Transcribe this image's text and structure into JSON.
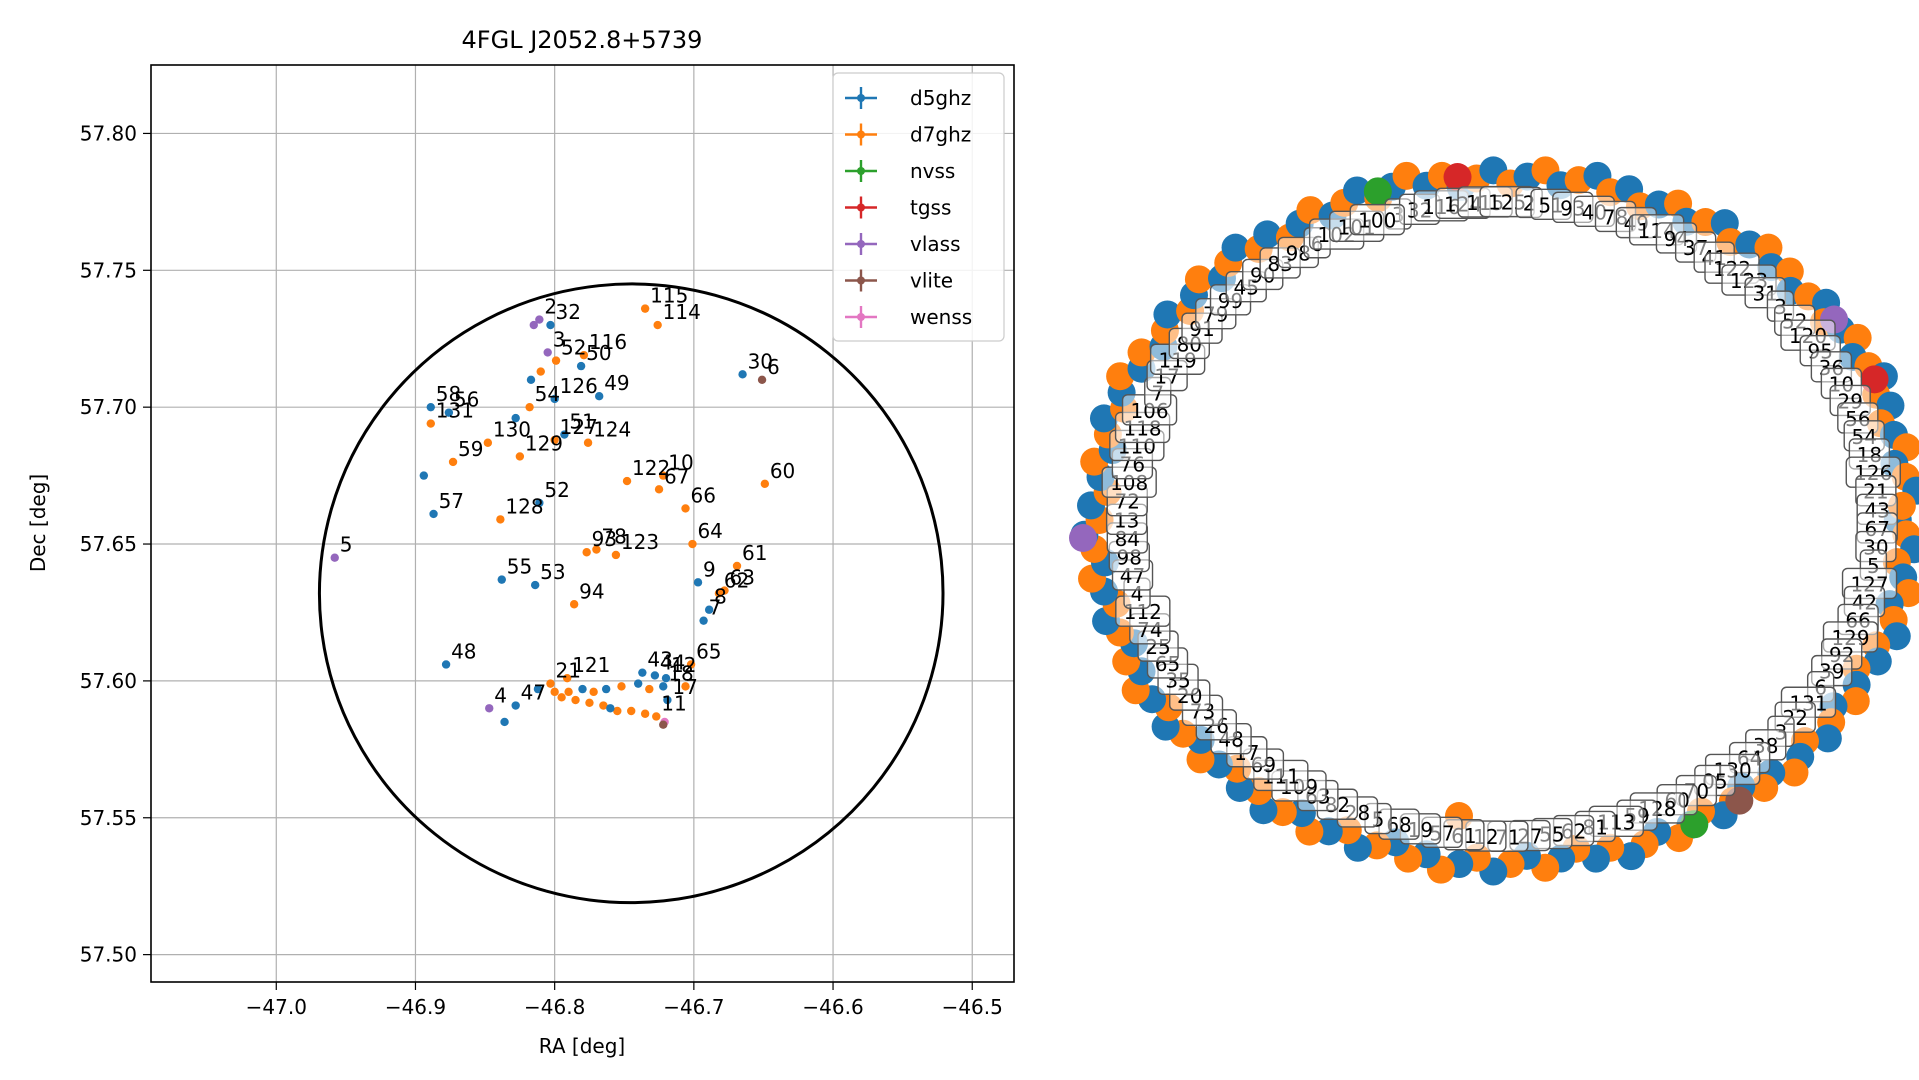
{
  "chart_data": [
    {
      "type": "scatter",
      "title": "4FGL J2052.8+5739",
      "xlabel": "RA [deg]",
      "ylabel": "Dec [deg]",
      "xlim": [
        -47.09,
        -46.47
      ],
      "ylim": [
        57.49,
        57.825
      ],
      "xticks": [
        -47.0,
        -46.9,
        -46.8,
        -46.7,
        -46.6,
        -46.5
      ],
      "xtick_labels": [
        "−47.0",
        "−46.9",
        "−46.8",
        "−46.7",
        "−46.6",
        "−46.5"
      ],
      "yticks": [
        57.5,
        57.55,
        57.6,
        57.65,
        57.7,
        57.75,
        57.8
      ],
      "ytick_labels": [
        "57.50",
        "57.55",
        "57.60",
        "57.65",
        "57.70",
        "57.75",
        "57.80"
      ],
      "grid": true,
      "legend_position": "upper right",
      "legend": [
        {
          "name": "d5ghz",
          "color": "#1f77b4"
        },
        {
          "name": "d7ghz",
          "color": "#ff7f0e"
        },
        {
          "name": "nvss",
          "color": "#2ca02c"
        },
        {
          "name": "tgss",
          "color": "#d62728"
        },
        {
          "name": "vlass",
          "color": "#9467bd"
        },
        {
          "name": "vlite",
          "color": "#8c564b"
        },
        {
          "name": "wenss",
          "color": "#e377c2"
        }
      ],
      "ellipse": {
        "center": [
          -46.745,
          57.632
        ],
        "semi_axes": [
          0.224,
          0.113
        ],
        "color": "#000000"
      },
      "points": [
        {
          "x": -46.803,
          "y": 57.73,
          "s": "d5ghz",
          "label": "32"
        },
        {
          "x": -46.735,
          "y": 57.736,
          "s": "d7ghz",
          "label": "115"
        },
        {
          "x": -46.726,
          "y": 57.73,
          "s": "d7ghz",
          "label": "114"
        },
        {
          "x": -46.811,
          "y": 57.732,
          "s": "vlass",
          "label": "2"
        },
        {
          "x": -46.815,
          "y": 57.73,
          "s": "vlass",
          "label": ""
        },
        {
          "x": -46.665,
          "y": 57.712,
          "s": "d5ghz",
          "label": "30"
        },
        {
          "x": -46.651,
          "y": 57.71,
          "s": "vlite",
          "label": "6"
        },
        {
          "x": -46.805,
          "y": 57.72,
          "s": "vlass",
          "label": "3"
        },
        {
          "x": -46.779,
          "y": 57.719,
          "s": "d7ghz",
          "label": "116"
        },
        {
          "x": -46.781,
          "y": 57.715,
          "s": "d5ghz",
          "label": "50"
        },
        {
          "x": -46.799,
          "y": 57.717,
          "s": "d7ghz",
          "label": "52"
        },
        {
          "x": -46.81,
          "y": 57.713,
          "s": "d7ghz",
          "label": ""
        },
        {
          "x": -46.817,
          "y": 57.71,
          "s": "d5ghz",
          "label": ""
        },
        {
          "x": -46.768,
          "y": 57.704,
          "s": "d5ghz",
          "label": "49"
        },
        {
          "x": -46.889,
          "y": 57.7,
          "s": "d5ghz",
          "label": "58"
        },
        {
          "x": -46.876,
          "y": 57.698,
          "s": "d5ghz",
          "label": "56"
        },
        {
          "x": -46.889,
          "y": 57.694,
          "s": "d7ghz",
          "label": "131"
        },
        {
          "x": -46.818,
          "y": 57.7,
          "s": "d7ghz",
          "label": "54"
        },
        {
          "x": -46.8,
          "y": 57.703,
          "s": "d5ghz",
          "label": "126"
        },
        {
          "x": -46.828,
          "y": 57.696,
          "s": "d5ghz",
          "label": ""
        },
        {
          "x": -46.848,
          "y": 57.687,
          "s": "d7ghz",
          "label": "130"
        },
        {
          "x": -46.825,
          "y": 57.682,
          "s": "d7ghz",
          "label": "129"
        },
        {
          "x": -46.8,
          "y": 57.688,
          "s": "d7ghz",
          "label": "127"
        },
        {
          "x": -46.793,
          "y": 57.69,
          "s": "d5ghz",
          "label": "51"
        },
        {
          "x": -46.776,
          "y": 57.687,
          "s": "d7ghz",
          "label": "124"
        },
        {
          "x": -46.894,
          "y": 57.675,
          "s": "d5ghz",
          "label": ""
        },
        {
          "x": -46.873,
          "y": 57.68,
          "s": "d7ghz",
          "label": "59"
        },
        {
          "x": -46.748,
          "y": 57.673,
          "s": "d7ghz",
          "label": "122"
        },
        {
          "x": -46.722,
          "y": 57.675,
          "s": "d7ghz",
          "label": "10"
        },
        {
          "x": -46.725,
          "y": 57.67,
          "s": "d7ghz",
          "label": "67"
        },
        {
          "x": -46.649,
          "y": 57.672,
          "s": "d7ghz",
          "label": "60"
        },
        {
          "x": -46.887,
          "y": 57.661,
          "s": "d5ghz",
          "label": "57"
        },
        {
          "x": -46.811,
          "y": 57.665,
          "s": "d5ghz",
          "label": "52"
        },
        {
          "x": -46.839,
          "y": 57.659,
          "s": "d7ghz",
          "label": "128"
        },
        {
          "x": -46.706,
          "y": 57.663,
          "s": "d7ghz",
          "label": "66"
        },
        {
          "x": -46.701,
          "y": 57.65,
          "s": "d7ghz",
          "label": "64"
        },
        {
          "x": -46.777,
          "y": 57.647,
          "s": "d7ghz",
          "label": "93"
        },
        {
          "x": -46.77,
          "y": 57.648,
          "s": "d7ghz",
          "label": "78"
        },
        {
          "x": -46.756,
          "y": 57.646,
          "s": "d7ghz",
          "label": "123"
        },
        {
          "x": -46.669,
          "y": 57.642,
          "s": "d7ghz",
          "label": "61"
        },
        {
          "x": -46.958,
          "y": 57.645,
          "s": "vlass",
          "label": "5"
        },
        {
          "x": -46.838,
          "y": 57.637,
          "s": "d5ghz",
          "label": "55"
        },
        {
          "x": -46.814,
          "y": 57.635,
          "s": "d5ghz",
          "label": "53"
        },
        {
          "x": -46.697,
          "y": 57.636,
          "s": "d5ghz",
          "label": "9"
        },
        {
          "x": -46.682,
          "y": 57.632,
          "s": "d7ghz",
          "label": "62"
        },
        {
          "x": -46.678,
          "y": 57.633,
          "s": "d7ghz",
          "label": "63"
        },
        {
          "x": -46.786,
          "y": 57.628,
          "s": "d7ghz",
          "label": "94"
        },
        {
          "x": -46.693,
          "y": 57.622,
          "s": "d5ghz",
          "label": "7"
        },
        {
          "x": -46.689,
          "y": 57.626,
          "s": "d5ghz",
          "label": "8"
        },
        {
          "x": -46.878,
          "y": 57.606,
          "s": "d5ghz",
          "label": "48"
        },
        {
          "x": -46.702,
          "y": 57.606,
          "s": "d7ghz",
          "label": "65"
        },
        {
          "x": -46.737,
          "y": 57.603,
          "s": "d5ghz",
          "label": "43"
        },
        {
          "x": -46.728,
          "y": 57.602,
          "s": "d5ghz",
          "label": "44"
        },
        {
          "x": -46.72,
          "y": 57.601,
          "s": "d5ghz",
          "label": "12"
        },
        {
          "x": -46.791,
          "y": 57.601,
          "s": "d7ghz",
          "label": "121"
        },
        {
          "x": -46.803,
          "y": 57.599,
          "s": "d7ghz",
          "label": "21"
        },
        {
          "x": -46.812,
          "y": 57.597,
          "s": "d5ghz",
          "label": ""
        },
        {
          "x": -46.8,
          "y": 57.596,
          "s": "d7ghz",
          "label": ""
        },
        {
          "x": -46.79,
          "y": 57.596,
          "s": "d7ghz",
          "label": ""
        },
        {
          "x": -46.78,
          "y": 57.597,
          "s": "d5ghz",
          "label": ""
        },
        {
          "x": -46.772,
          "y": 57.596,
          "s": "d7ghz",
          "label": ""
        },
        {
          "x": -46.763,
          "y": 57.597,
          "s": "d5ghz",
          "label": ""
        },
        {
          "x": -46.752,
          "y": 57.598,
          "s": "d7ghz",
          "label": ""
        },
        {
          "x": -46.74,
          "y": 57.599,
          "s": "d5ghz",
          "label": ""
        },
        {
          "x": -46.732,
          "y": 57.597,
          "s": "d7ghz",
          "label": ""
        },
        {
          "x": -46.722,
          "y": 57.598,
          "s": "d5ghz",
          "label": "18"
        },
        {
          "x": -46.706,
          "y": 57.598,
          "s": "d7ghz",
          "label": ""
        },
        {
          "x": -46.795,
          "y": 57.594,
          "s": "d7ghz",
          "label": ""
        },
        {
          "x": -46.785,
          "y": 57.593,
          "s": "d7ghz",
          "label": ""
        },
        {
          "x": -46.775,
          "y": 57.592,
          "s": "d7ghz",
          "label": ""
        },
        {
          "x": -46.765,
          "y": 57.591,
          "s": "d7ghz",
          "label": ""
        },
        {
          "x": -46.755,
          "y": 57.589,
          "s": "d7ghz",
          "label": ""
        },
        {
          "x": -46.745,
          "y": 57.589,
          "s": "d7ghz",
          "label": ""
        },
        {
          "x": -46.735,
          "y": 57.588,
          "s": "d7ghz",
          "label": ""
        },
        {
          "x": -46.727,
          "y": 57.587,
          "s": "d7ghz",
          "label": "11"
        },
        {
          "x": -46.719,
          "y": 57.593,
          "s": "d5ghz",
          "label": "17"
        },
        {
          "x": -46.76,
          "y": 57.59,
          "s": "d5ghz",
          "label": ""
        },
        {
          "x": -46.828,
          "y": 57.591,
          "s": "d5ghz",
          "label": "47"
        },
        {
          "x": -46.847,
          "y": 57.59,
          "s": "vlass",
          "label": "4"
        },
        {
          "x": -46.836,
          "y": 57.585,
          "s": "d5ghz",
          "label": ""
        },
        {
          "x": -46.721,
          "y": 57.585,
          "s": "wenss",
          "label": ""
        },
        {
          "x": -46.722,
          "y": 57.584,
          "s": "vlite",
          "label": ""
        }
      ]
    },
    {
      "type": "scatter",
      "title": "",
      "axes": false,
      "ring_labels": [
        "3",
        "32",
        "116",
        "124",
        "115",
        "125",
        "2",
        "51",
        "93",
        "40",
        "78",
        "49",
        "114",
        "94",
        "37",
        "41",
        "122",
        "123",
        "31",
        "3",
        "52",
        "120",
        "95",
        "36",
        "10",
        "29",
        "56",
        "54",
        "18",
        "126",
        "21",
        "43",
        "67",
        "30",
        "5",
        "127",
        "42",
        "66",
        "129",
        "92",
        "39",
        "6",
        "131",
        "22",
        "3",
        "38",
        "64",
        "130",
        "05",
        "70",
        "60",
        "128",
        "59",
        "113",
        "81",
        "62",
        "55",
        "27",
        "71",
        "12",
        "61",
        "57",
        "19",
        "68",
        "5",
        "28",
        "82",
        "63",
        "109",
        "111",
        "69",
        "17",
        "48",
        "26",
        "73",
        "20",
        "35",
        "65",
        "25",
        "74",
        "112",
        "4",
        "47",
        "98",
        "84",
        "13",
        "72",
        "108",
        "76",
        "110",
        "118",
        "106",
        "7",
        "17",
        "119",
        "80",
        "91",
        "79",
        "99",
        "45",
        "90",
        "83",
        "98",
        "6",
        "102",
        "101",
        "100"
      ],
      "label_font_note": ""
    }
  ],
  "colors": {
    "d5ghz": "#1f77b4",
    "d7ghz": "#ff7f0e",
    "nvss": "#2ca02c",
    "tgss": "#d62728",
    "vlass": "#9467bd",
    "vlite": "#8c564b",
    "wenss": "#e377c2"
  }
}
